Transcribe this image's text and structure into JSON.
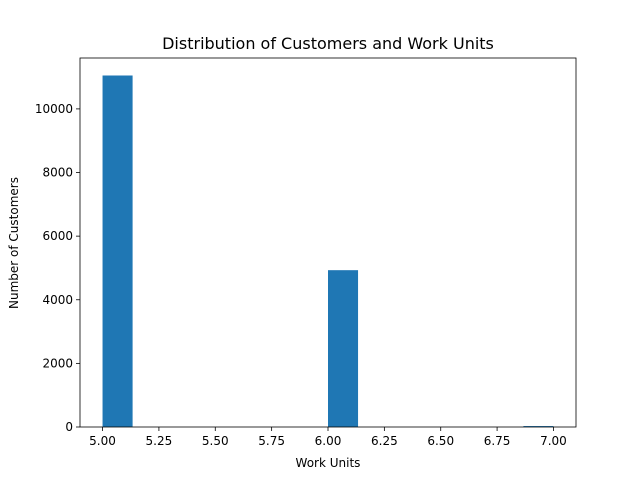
{
  "chart_data": {
    "type": "bar",
    "title": "Distribution of Customers and Work Units",
    "xlabel": "Work Units",
    "ylabel": "Number of Customers",
    "xlim": [
      4.9,
      7.1
    ],
    "ylim": [
      0,
      11600
    ],
    "grid": false,
    "bar_color": "#1f77b4",
    "bin_width": 0.1333,
    "bins": [
      {
        "start": 5.0,
        "value": 11050
      },
      {
        "start": 6.0,
        "value": 4930
      },
      {
        "start": 6.8667,
        "value": 30
      }
    ],
    "x_ticks": [
      "5.00",
      "5.25",
      "5.50",
      "5.75",
      "6.00",
      "6.25",
      "6.50",
      "6.75",
      "7.00"
    ],
    "y_ticks": [
      "0",
      "2000",
      "4000",
      "6000",
      "8000",
      "10000"
    ]
  }
}
